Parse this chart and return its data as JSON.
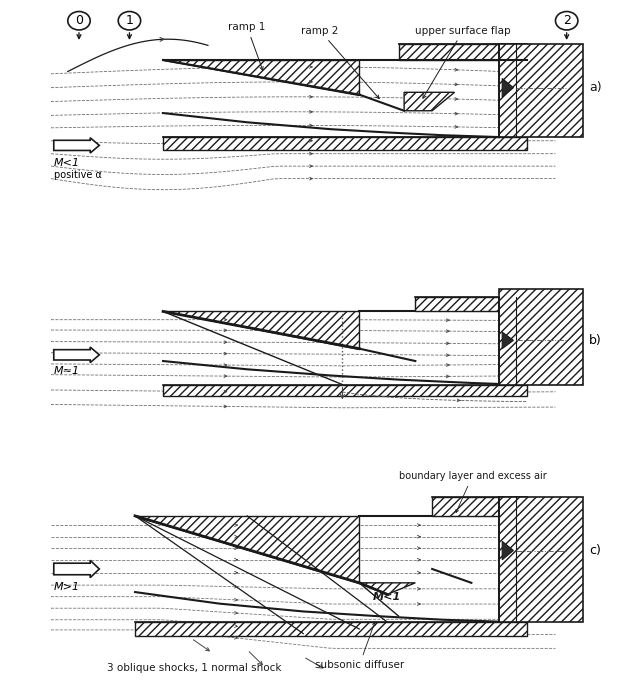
{
  "bg_color": "#ffffff",
  "line_color": "#1a1a1a",
  "fig_width": 6.37,
  "fig_height": 6.89,
  "panel_a_label": "a)",
  "panel_b_label": "b)",
  "panel_c_label": "c)",
  "station0": "0",
  "station1": "1",
  "station2": "2",
  "mach_a1": "M<1",
  "mach_a2": "positive α",
  "mach_b": "M≈1",
  "mach_c": "M>1",
  "label_ramp1": "ramp 1",
  "label_ramp2": "ramp 2",
  "label_usf": "upper surface flap",
  "label_bla": "boundary layer and excess air",
  "label_sub": "subsonic diffuser",
  "label_mlt1": "M<1",
  "label_shock": "3 oblique shocks, 1 normal shock"
}
